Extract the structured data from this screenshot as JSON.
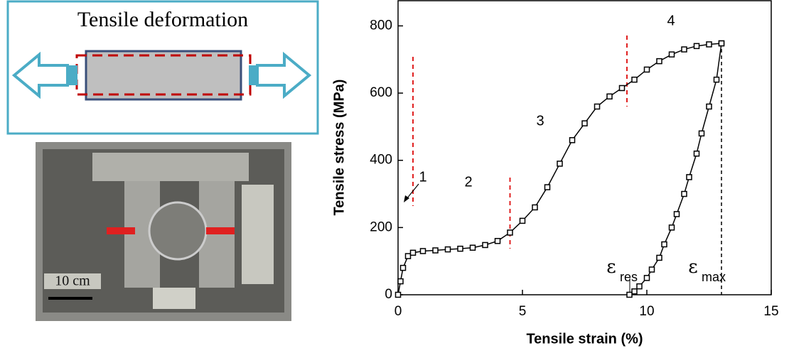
{
  "diagram": {
    "title": "Tensile deformation"
  },
  "photo": {
    "scale_label": "10 cm"
  },
  "chart_data": {
    "type": "scatter",
    "xlabel": "Tensile strain (%)",
    "ylabel": "Tensile stress (MPa)",
    "xlim": [
      0,
      15
    ],
    "ylim": [
      0,
      877
    ],
    "xticks": [
      0,
      5,
      10,
      15
    ],
    "yticks": [
      0,
      200,
      400,
      600,
      800
    ],
    "series": [
      {
        "color": "#000000",
        "x": [
          0,
          0.1,
          0.2,
          0.4,
          0.6,
          1,
          1.5,
          2,
          2.5,
          3,
          3.5,
          4,
          4.5,
          5,
          5.5,
          6,
          6.5,
          7,
          7.5,
          8,
          8.5,
          9,
          9.5,
          10,
          10.5,
          11,
          11.5,
          12,
          12.5,
          13
        ],
        "values": [
          0,
          40,
          80,
          115,
          125,
          130,
          132,
          135,
          137,
          140,
          148,
          160,
          185,
          220,
          260,
          320,
          390,
          460,
          510,
          560,
          590,
          615,
          640,
          670,
          695,
          715,
          730,
          740,
          745,
          748
        ]
      },
      {
        "color": "#000000",
        "x": [
          13,
          12.8,
          12.5,
          12.2,
          12,
          11.7,
          11.5,
          11.2,
          11,
          10.7,
          10.5,
          10.2,
          10,
          9.7,
          9.5,
          9.3
        ],
        "values": [
          748,
          640,
          560,
          480,
          420,
          350,
          300,
          240,
          200,
          150,
          110,
          75,
          50,
          25,
          10,
          0
        ]
      }
    ],
    "stage_boundaries": [
      0.6,
      4.5,
      9.2
    ],
    "strain_max": 13,
    "annotations": [
      {
        "label": "1"
      },
      {
        "label": "2"
      },
      {
        "label": "3"
      },
      {
        "label": "4"
      },
      {
        "label": "ε",
        "sub": "res"
      },
      {
        "label": "ε",
        "sub": "max"
      }
    ]
  }
}
